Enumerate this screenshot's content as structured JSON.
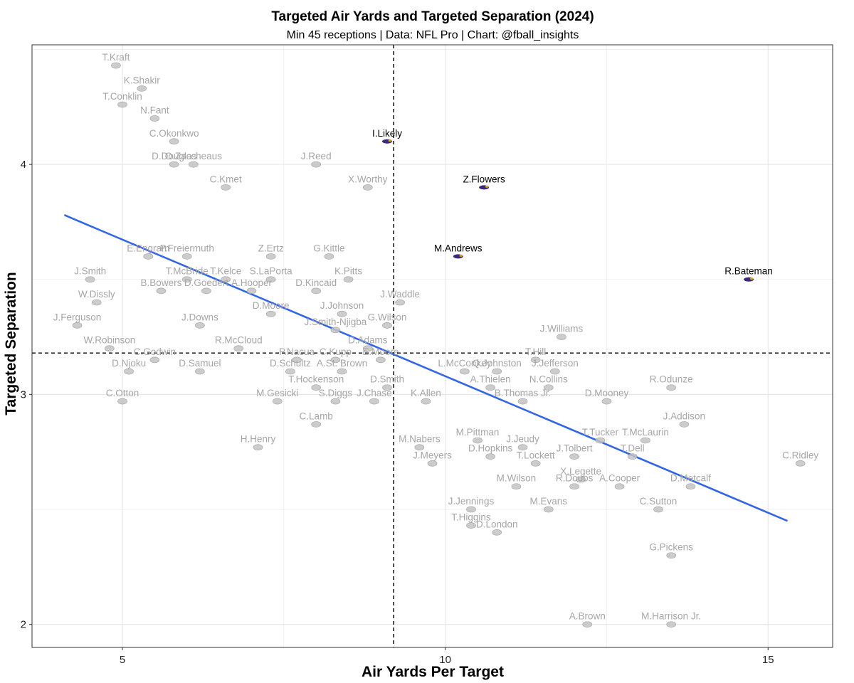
{
  "colors": {
    "highlight": "#000000",
    "muted": "#a6a6a6",
    "trend": "#3366e6",
    "ravens_purple": "#3b2a7a",
    "grid": "#e6e6e6",
    "reference": "#000000"
  },
  "chart_data": {
    "type": "scatter",
    "title": "Targeted Air Yards and Targeted Separation (2024)",
    "subtitle": "Min 45 receptions | Data: NFL Pro | Chart: @fball_insights",
    "xlabel": "Air Yards Per Target",
    "ylabel": "Targeted Separation",
    "xlim": [
      3.6,
      16.0
    ],
    "ylim": [
      1.9,
      4.52
    ],
    "xticks": [
      5,
      10,
      15
    ],
    "yticks": [
      2,
      3,
      4
    ],
    "grid": true,
    "reference_lines": {
      "x": 9.2,
      "y": 3.18
    },
    "trend_line": {
      "x": [
        4.1,
        15.3
      ],
      "y": [
        3.78,
        2.45
      ]
    },
    "points": [
      {
        "label": "T.Kraft",
        "x": 4.9,
        "y": 4.43,
        "highlight": false
      },
      {
        "label": "K.Shakir",
        "x": 5.3,
        "y": 4.33,
        "highlight": false
      },
      {
        "label": "T.Conklin",
        "x": 5.0,
        "y": 4.26,
        "highlight": false
      },
      {
        "label": "N.Fant",
        "x": 5.5,
        "y": 4.2,
        "highlight": false
      },
      {
        "label": "C.Okonkwo",
        "x": 5.8,
        "y": 4.1,
        "highlight": false
      },
      {
        "label": "O.Zaccheaus",
        "x": 6.1,
        "y": 4.0,
        "highlight": false
      },
      {
        "label": "D.Douglas",
        "x": 5.8,
        "y": 4.0,
        "highlight": false
      },
      {
        "label": "C.Kmet",
        "x": 6.6,
        "y": 3.9,
        "highlight": false
      },
      {
        "label": "J.Reed",
        "x": 8.0,
        "y": 4.0,
        "highlight": false
      },
      {
        "label": "I.Likely",
        "x": 9.1,
        "y": 4.1,
        "highlight": true
      },
      {
        "label": "X.Worthy",
        "x": 8.8,
        "y": 3.9,
        "highlight": false
      },
      {
        "label": "Z.Flowers",
        "x": 10.6,
        "y": 3.9,
        "highlight": true
      },
      {
        "label": "M.Andrews",
        "x": 10.2,
        "y": 3.6,
        "highlight": true
      },
      {
        "label": "R.Bateman",
        "x": 14.7,
        "y": 3.5,
        "highlight": true
      },
      {
        "label": "E.Engram",
        "x": 5.4,
        "y": 3.6,
        "highlight": false
      },
      {
        "label": "P.Freiermuth",
        "x": 6.0,
        "y": 3.6,
        "highlight": false
      },
      {
        "label": "Z.Ertz",
        "x": 7.3,
        "y": 3.6,
        "highlight": false
      },
      {
        "label": "G.Kittle",
        "x": 8.2,
        "y": 3.6,
        "highlight": false
      },
      {
        "label": "J.Smith",
        "x": 4.5,
        "y": 3.5,
        "highlight": false
      },
      {
        "label": "T.McBride",
        "x": 6.0,
        "y": 3.5,
        "highlight": false
      },
      {
        "label": "T.Kelce",
        "x": 6.6,
        "y": 3.5,
        "highlight": false
      },
      {
        "label": "S.LaPorta",
        "x": 7.3,
        "y": 3.5,
        "highlight": false
      },
      {
        "label": "K.Pitts",
        "x": 8.5,
        "y": 3.5,
        "highlight": false
      },
      {
        "label": "B.Bowers",
        "x": 5.6,
        "y": 3.45,
        "highlight": false
      },
      {
        "label": "D.Goedert",
        "x": 6.3,
        "y": 3.45,
        "highlight": false
      },
      {
        "label": "A.Hooper",
        "x": 7.0,
        "y": 3.45,
        "highlight": false
      },
      {
        "label": "D.Kincaid",
        "x": 8.0,
        "y": 3.45,
        "highlight": false
      },
      {
        "label": "W.Dissly",
        "x": 4.6,
        "y": 3.4,
        "highlight": false
      },
      {
        "label": "J.Waddle",
        "x": 9.3,
        "y": 3.4,
        "highlight": false
      },
      {
        "label": "D.Moore",
        "x": 7.3,
        "y": 3.35,
        "highlight": false
      },
      {
        "label": "J.Johnson",
        "x": 8.4,
        "y": 3.35,
        "highlight": false
      },
      {
        "label": "J.Ferguson",
        "x": 4.3,
        "y": 3.3,
        "highlight": false
      },
      {
        "label": "J.Downs",
        "x": 6.2,
        "y": 3.3,
        "highlight": false
      },
      {
        "label": "G.Wilson",
        "x": 9.1,
        "y": 3.3,
        "highlight": false
      },
      {
        "label": "J.Smith-Njigba",
        "x": 8.3,
        "y": 3.28,
        "highlight": false
      },
      {
        "label": "J.Williams",
        "x": 11.8,
        "y": 3.25,
        "highlight": false
      },
      {
        "label": "W.Robinson",
        "x": 4.8,
        "y": 3.2,
        "highlight": false
      },
      {
        "label": "R.McCloud",
        "x": 6.8,
        "y": 3.2,
        "highlight": false
      },
      {
        "label": "D.Adams",
        "x": 8.8,
        "y": 3.2,
        "highlight": false
      },
      {
        "label": "C.Godwin",
        "x": 5.5,
        "y": 3.15,
        "highlight": false
      },
      {
        "label": "P.Nacua",
        "x": 7.7,
        "y": 3.15,
        "highlight": false
      },
      {
        "label": "C.Kupp",
        "x": 8.3,
        "y": 3.15,
        "highlight": false
      },
      {
        "label": "E.Moore",
        "x": 9.0,
        "y": 3.15,
        "highlight": false
      },
      {
        "label": "T.Hill",
        "x": 11.4,
        "y": 3.15,
        "highlight": false
      },
      {
        "label": "D.Njoku",
        "x": 5.1,
        "y": 3.1,
        "highlight": false
      },
      {
        "label": "D.Samuel",
        "x": 6.2,
        "y": 3.1,
        "highlight": false
      },
      {
        "label": "D.Schultz",
        "x": 7.6,
        "y": 3.1,
        "highlight": false
      },
      {
        "label": "A.St. Brown",
        "x": 8.4,
        "y": 3.1,
        "highlight": false
      },
      {
        "label": "L.McConkey",
        "x": 10.3,
        "y": 3.1,
        "highlight": false
      },
      {
        "label": "Q.Johnston",
        "x": 10.8,
        "y": 3.1,
        "highlight": false
      },
      {
        "label": "J.Jefferson",
        "x": 11.7,
        "y": 3.1,
        "highlight": false
      },
      {
        "label": "T.Hockenson",
        "x": 8.0,
        "y": 3.03,
        "highlight": false
      },
      {
        "label": "D.Smith",
        "x": 9.1,
        "y": 3.03,
        "highlight": false
      },
      {
        "label": "A.Thielen",
        "x": 10.7,
        "y": 3.03,
        "highlight": false
      },
      {
        "label": "N.Collins",
        "x": 11.6,
        "y": 3.03,
        "highlight": false
      },
      {
        "label": "R.Odunze",
        "x": 13.5,
        "y": 3.03,
        "highlight": false
      },
      {
        "label": "C.Otton",
        "x": 5.0,
        "y": 2.97,
        "highlight": false
      },
      {
        "label": "M.Gesicki",
        "x": 7.4,
        "y": 2.97,
        "highlight": false
      },
      {
        "label": "S.Diggs",
        "x": 8.3,
        "y": 2.97,
        "highlight": false
      },
      {
        "label": "J.Chase",
        "x": 8.9,
        "y": 2.97,
        "highlight": false
      },
      {
        "label": "K.Allen",
        "x": 9.7,
        "y": 2.97,
        "highlight": false
      },
      {
        "label": "B.Thomas Jr.",
        "x": 11.2,
        "y": 2.97,
        "highlight": false
      },
      {
        "label": "D.Mooney",
        "x": 12.5,
        "y": 2.97,
        "highlight": false
      },
      {
        "label": "C.Lamb",
        "x": 8.0,
        "y": 2.87,
        "highlight": false
      },
      {
        "label": "J.Addison",
        "x": 13.7,
        "y": 2.87,
        "highlight": false
      },
      {
        "label": "M.Pittman",
        "x": 10.5,
        "y": 2.8,
        "highlight": false
      },
      {
        "label": "T.Tucker",
        "x": 12.4,
        "y": 2.8,
        "highlight": false
      },
      {
        "label": "T.McLaurin",
        "x": 13.1,
        "y": 2.8,
        "highlight": false
      },
      {
        "label": "H.Henry",
        "x": 7.1,
        "y": 2.77,
        "highlight": false
      },
      {
        "label": "M.Nabers",
        "x": 9.6,
        "y": 2.77,
        "highlight": false
      },
      {
        "label": "J.Jeudy",
        "x": 11.2,
        "y": 2.77,
        "highlight": false
      },
      {
        "label": "D.Hopkins",
        "x": 10.7,
        "y": 2.73,
        "highlight": false
      },
      {
        "label": "J.Tolbert",
        "x": 12.0,
        "y": 2.73,
        "highlight": false
      },
      {
        "label": "T.Dell",
        "x": 12.9,
        "y": 2.73,
        "highlight": false
      },
      {
        "label": "T.Lockett",
        "x": 11.4,
        "y": 2.7,
        "highlight": false
      },
      {
        "label": "J.Meyers",
        "x": 9.8,
        "y": 2.7,
        "highlight": false
      },
      {
        "label": "C.Ridley",
        "x": 15.5,
        "y": 2.7,
        "highlight": false
      },
      {
        "label": "X.Legette",
        "x": 12.1,
        "y": 2.63,
        "highlight": false
      },
      {
        "label": "M.Wilson",
        "x": 11.1,
        "y": 2.6,
        "highlight": false
      },
      {
        "label": "R.Doubs",
        "x": 12.0,
        "y": 2.6,
        "highlight": false
      },
      {
        "label": "A.Cooper",
        "x": 12.7,
        "y": 2.6,
        "highlight": false
      },
      {
        "label": "D.Metcalf",
        "x": 13.8,
        "y": 2.6,
        "highlight": false
      },
      {
        "label": "J.Jennings",
        "x": 10.4,
        "y": 2.5,
        "highlight": false
      },
      {
        "label": "M.Evans",
        "x": 11.6,
        "y": 2.5,
        "highlight": false
      },
      {
        "label": "C.Sutton",
        "x": 13.3,
        "y": 2.5,
        "highlight": false
      },
      {
        "label": "T.Higgins",
        "x": 10.4,
        "y": 2.43,
        "highlight": false
      },
      {
        "label": "D.London",
        "x": 10.8,
        "y": 2.4,
        "highlight": false
      },
      {
        "label": "G.Pickens",
        "x": 13.5,
        "y": 2.3,
        "highlight": false
      },
      {
        "label": "A.Brown",
        "x": 12.2,
        "y": 2.0,
        "highlight": false
      },
      {
        "label": "M.Harrison Jr.",
        "x": 13.5,
        "y": 2.0,
        "highlight": false
      }
    ]
  }
}
